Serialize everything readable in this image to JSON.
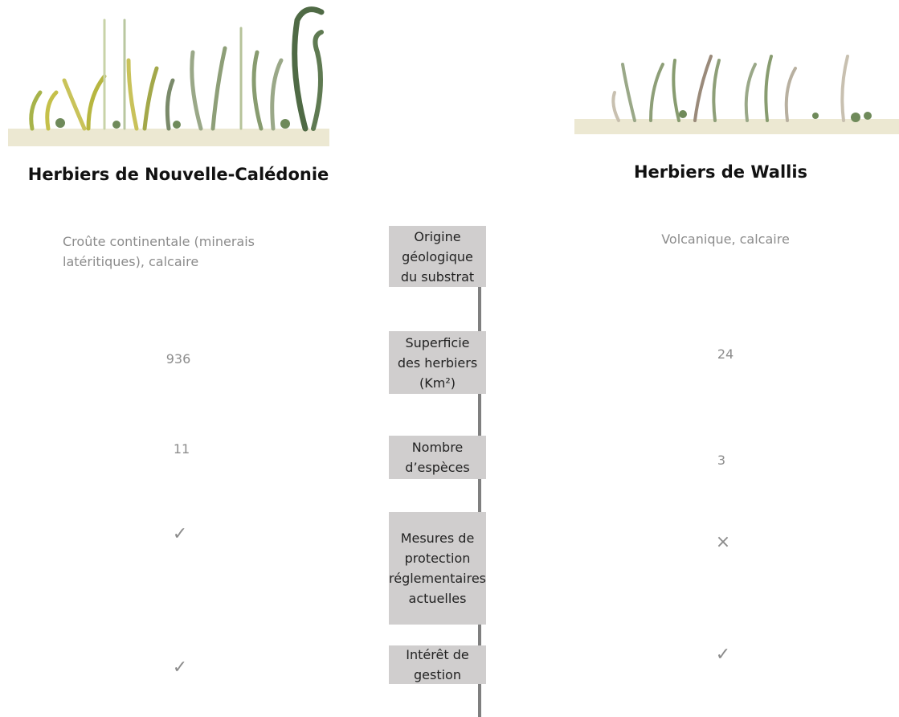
{
  "left": {
    "title": "Herbiers de Nouvelle-Calédonie"
  },
  "right": {
    "title": "Herbiers de Wallis"
  },
  "rows": [
    {
      "label": "Origine géologique du substrat",
      "left": "Croûte continentale (minerais latéritiques), calcaire",
      "right": "Volcanique, calcaire"
    },
    {
      "label": "Superficie des herbiers (Km²)",
      "left": "936",
      "right": "24"
    },
    {
      "label": "Nombre d’espèces",
      "left": "11",
      "right": "3"
    },
    {
      "label": "Mesures de protection réglementaires actuelles",
      "left": "✓",
      "right": "×"
    },
    {
      "label": "Intérêt de gestion",
      "left": "✓",
      "right": "✓"
    }
  ]
}
